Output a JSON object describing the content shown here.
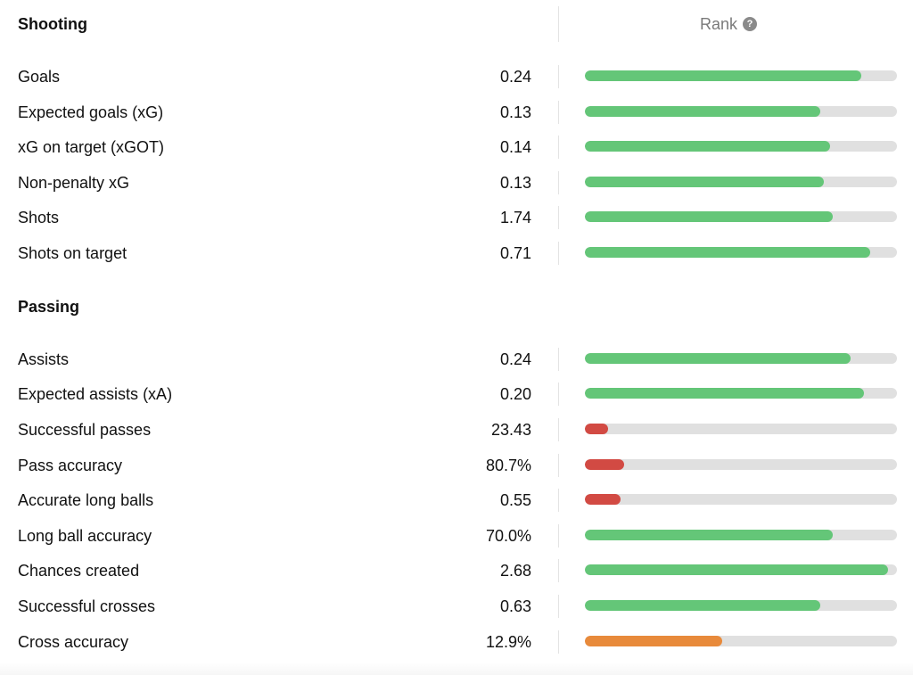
{
  "rank": {
    "label": "Rank",
    "help_glyph": "?"
  },
  "colors": {
    "high": "#64c678",
    "low": "#d24a43",
    "mid": "#e88a3b",
    "track": "#e0e0e0"
  },
  "sections": [
    {
      "title": "Shooting",
      "rows": [
        {
          "label": "Goals",
          "value": "0.24",
          "rank": 0.885,
          "tier": "high"
        },
        {
          "label": "Expected goals (xG)",
          "value": "0.13",
          "rank": 0.755,
          "tier": "high"
        },
        {
          "label": "xG on target (xGOT)",
          "value": "0.14",
          "rank": 0.785,
          "tier": "high"
        },
        {
          "label": "Non-penalty xG",
          "value": "0.13",
          "rank": 0.765,
          "tier": "high"
        },
        {
          "label": "Shots",
          "value": "1.74",
          "rank": 0.795,
          "tier": "high"
        },
        {
          "label": "Shots on target",
          "value": "0.71",
          "rank": 0.915,
          "tier": "high"
        }
      ]
    },
    {
      "title": "Passing",
      "rows": [
        {
          "label": "Assists",
          "value": "0.24",
          "rank": 0.85,
          "tier": "high"
        },
        {
          "label": "Expected assists (xA)",
          "value": "0.20",
          "rank": 0.895,
          "tier": "high"
        },
        {
          "label": "Successful passes",
          "value": "23.43",
          "rank": 0.075,
          "tier": "low"
        },
        {
          "label": "Pass accuracy",
          "value": "80.7%",
          "rank": 0.125,
          "tier": "low"
        },
        {
          "label": "Accurate long balls",
          "value": "0.55",
          "rank": 0.115,
          "tier": "low"
        },
        {
          "label": "Long ball accuracy",
          "value": "70.0%",
          "rank": 0.795,
          "tier": "high"
        },
        {
          "label": "Chances created",
          "value": "2.68",
          "rank": 0.97,
          "tier": "high"
        },
        {
          "label": "Successful crosses",
          "value": "0.63",
          "rank": 0.755,
          "tier": "high"
        },
        {
          "label": "Cross accuracy",
          "value": "12.9%",
          "rank": 0.44,
          "tier": "mid"
        }
      ]
    }
  ]
}
